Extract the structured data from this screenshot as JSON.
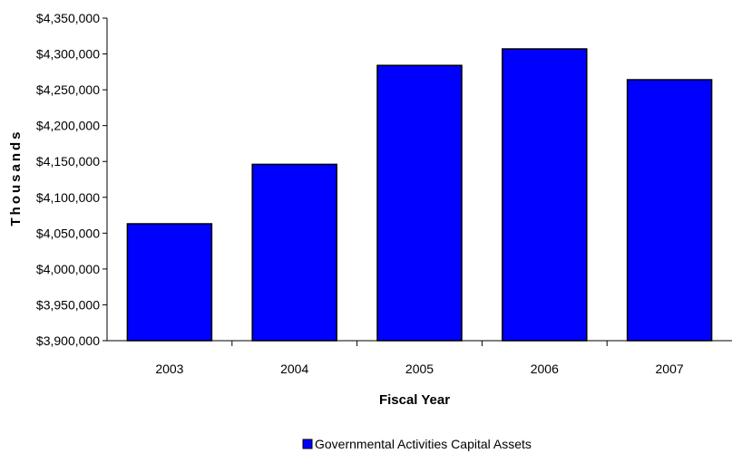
{
  "chart_data": {
    "type": "bar",
    "categories": [
      "2003",
      "2004",
      "2005",
      "2006",
      "2007"
    ],
    "series": [
      {
        "name": "Governmental Activities Capital Assets",
        "values": [
          4063000,
          4146000,
          4284000,
          4307000,
          4264000
        ]
      }
    ],
    "xlabel": "Fiscal Year",
    "ylabel": "Thousands",
    "ylim": [
      3900000,
      4350000
    ],
    "yticks": [
      3900000,
      3950000,
      4000000,
      4050000,
      4100000,
      4150000,
      4200000,
      4250000,
      4300000,
      4350000
    ],
    "ytick_labels": [
      "$3,900,000",
      "$3,950,000",
      "$4,000,000",
      "$4,050,000",
      "$4,100,000",
      "$4,150,000",
      "$4,200,000",
      "$4,250,000",
      "$4,300,000",
      "$4,350,000"
    ],
    "grid": false,
    "legend_position": "bottom",
    "bar_color": "#0000ff"
  }
}
